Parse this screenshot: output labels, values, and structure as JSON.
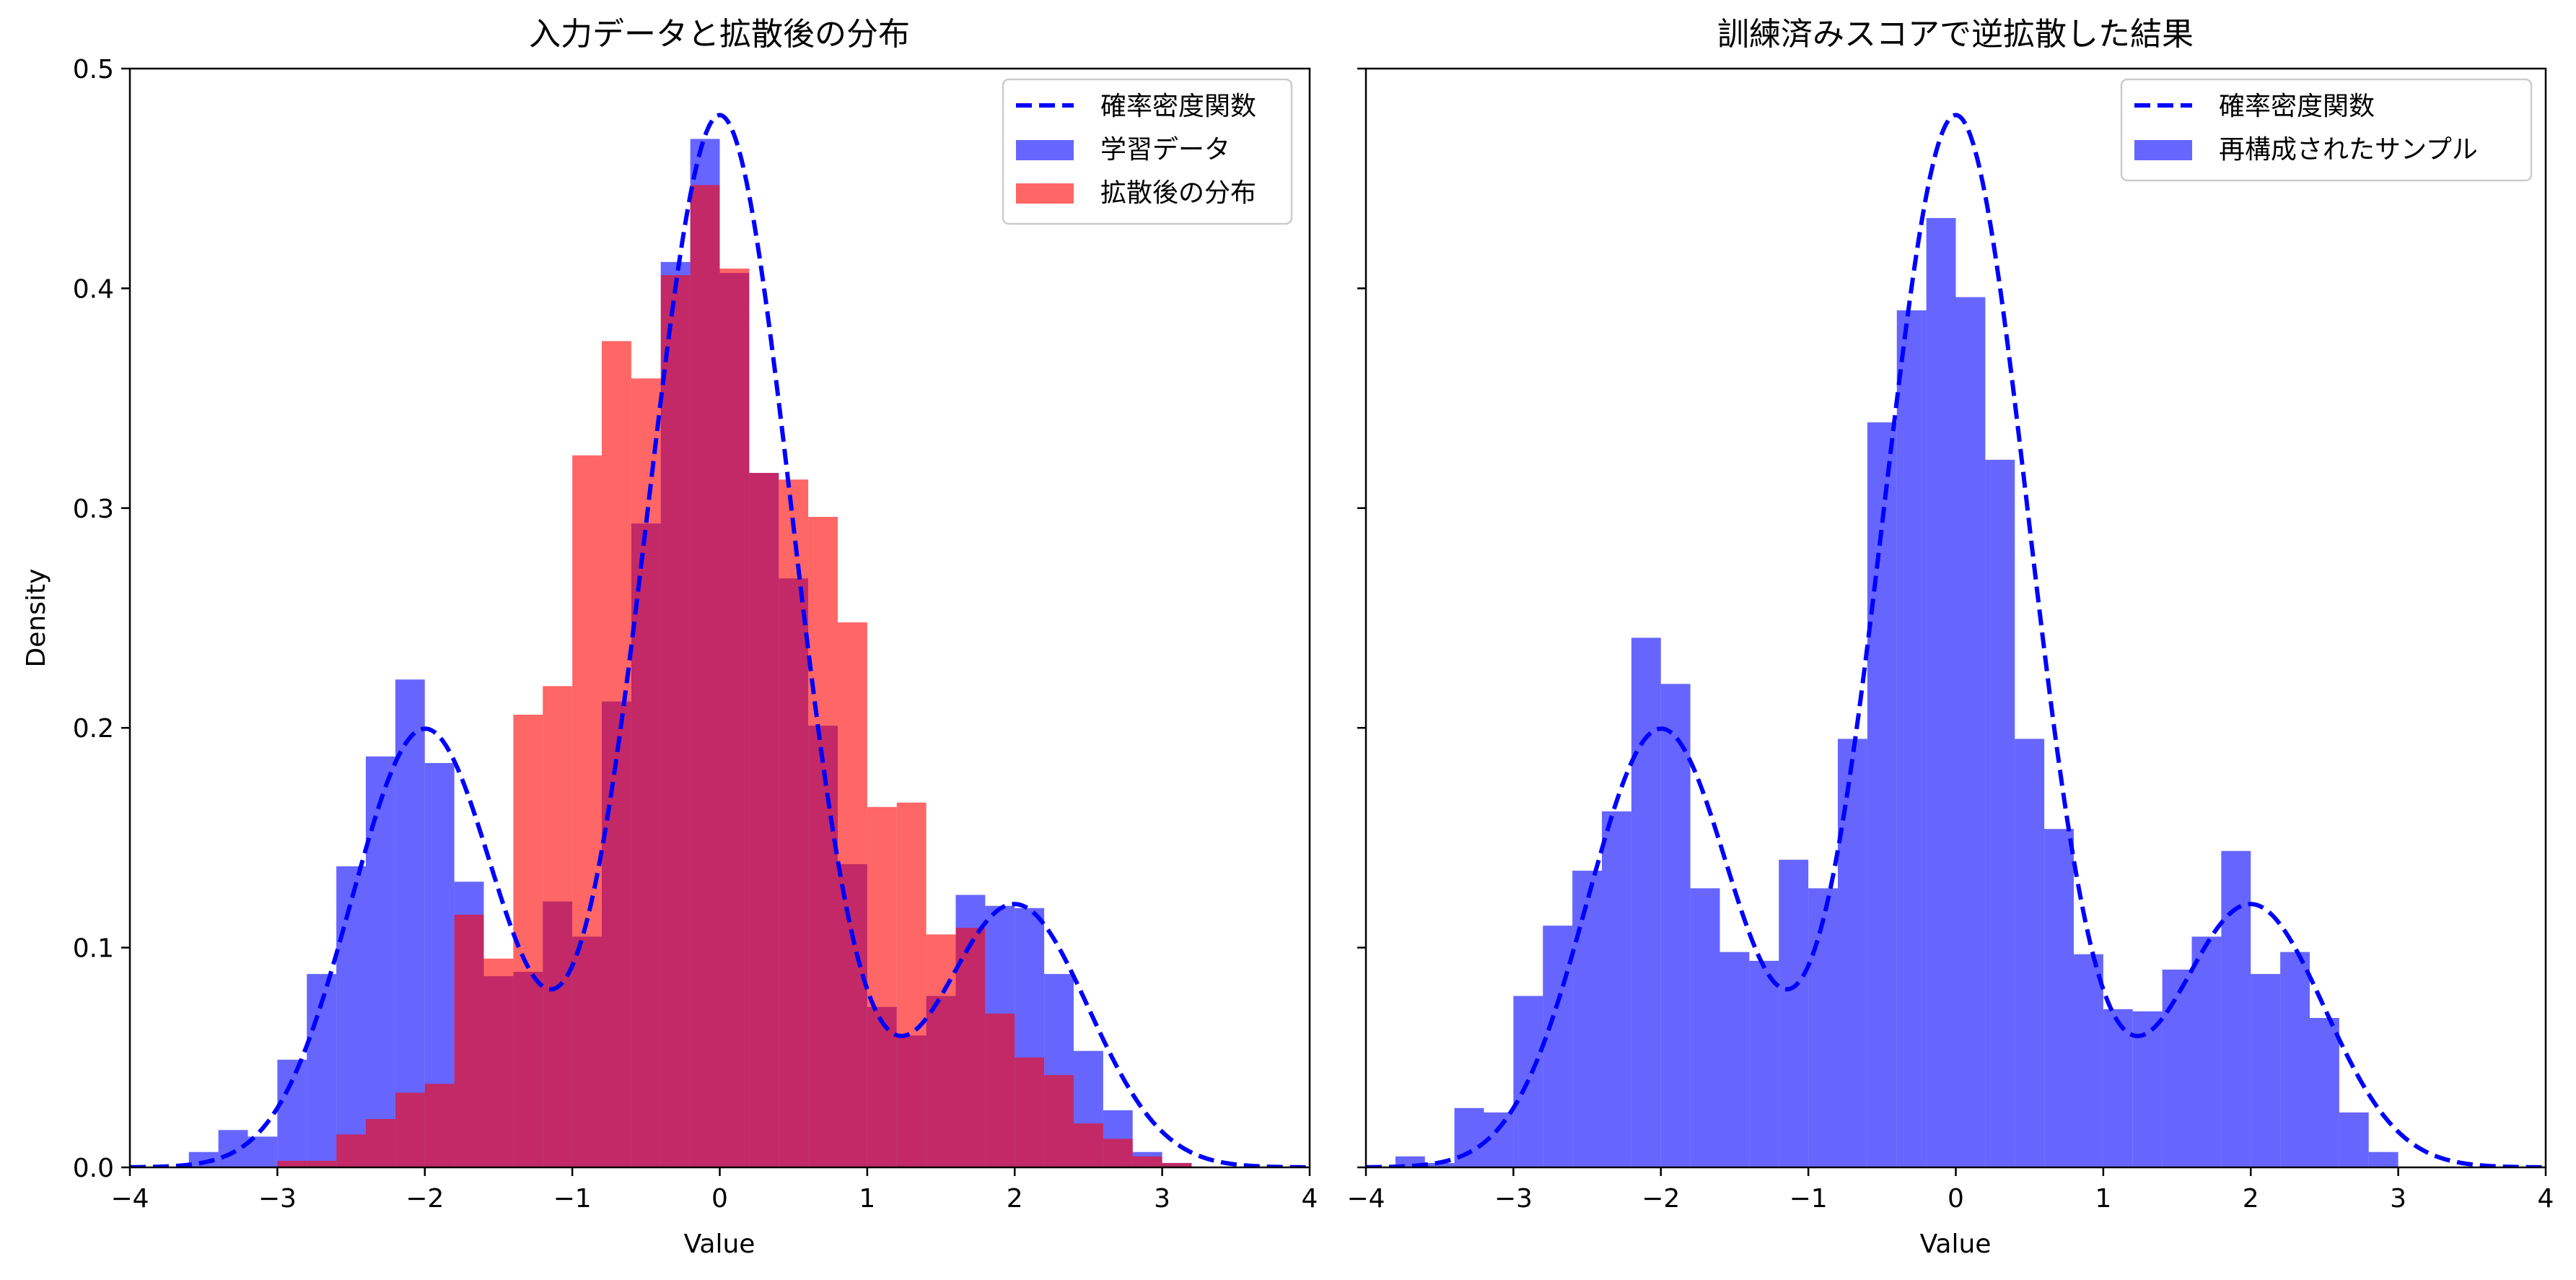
{
  "chart_data": [
    {
      "type": "histogram",
      "title": "入力データと拡散後の分布",
      "xlabel": "Value",
      "ylabel": "Density",
      "xlim": [
        -4,
        4
      ],
      "ylim": [
        0,
        0.5
      ],
      "xticks": [
        "−4",
        "−3",
        "−2",
        "−1",
        "0",
        "1",
        "2",
        "3",
        "4"
      ],
      "yticks": [
        "0.0",
        "0.1",
        "0.2",
        "0.3",
        "0.4",
        "0.5"
      ],
      "legend_position": "upper right",
      "pdf": {
        "name": "確率密度関数",
        "color": "#0000ff",
        "style": "dashed",
        "components": [
          {
            "weight": 0.25,
            "mean": -2,
            "sd": 0.5
          },
          {
            "weight": 0.6,
            "mean": 0,
            "sd": 0.5
          },
          {
            "weight": 0.15,
            "mean": 2,
            "sd": 0.5
          }
        ]
      },
      "series": [
        {
          "name": "学習データ",
          "color": "#0000ff",
          "opacity": 0.6,
          "bin_edges": [
            -3.6,
            -3.4,
            -3.2,
            -3.0,
            -2.8,
            -2.6,
            -2.4,
            -2.2,
            -2.0,
            -1.8,
            -1.6,
            -1.4,
            -1.2,
            -1.0,
            -0.8,
            -0.6,
            -0.4,
            -0.2,
            0.0,
            0.2,
            0.4,
            0.6,
            0.8,
            1.0,
            1.2,
            1.4,
            1.6,
            1.8,
            2.0,
            2.2,
            2.4,
            2.6,
            2.8,
            3.0,
            3.2
          ],
          "values": [
            0.007,
            0.017,
            0.014,
            0.049,
            0.088,
            0.137,
            0.187,
            0.222,
            0.184,
            0.13,
            0.087,
            0.089,
            0.121,
            0.105,
            0.212,
            0.293,
            0.412,
            0.468,
            0.407,
            0.316,
            0.268,
            0.201,
            0.138,
            0.073,
            0.06,
            0.078,
            0.124,
            0.119,
            0.118,
            0.088,
            0.053,
            0.026,
            0.007,
            0.002
          ]
        },
        {
          "name": "拡散後の分布",
          "color": "#ff0000",
          "opacity": 0.6,
          "bin_edges": [
            -3.0,
            -2.8,
            -2.6,
            -2.4,
            -2.2,
            -2.0,
            -1.8,
            -1.6,
            -1.4,
            -1.2,
            -1.0,
            -0.8,
            -0.6,
            -0.4,
            -0.2,
            0.0,
            0.2,
            0.4,
            0.6,
            0.8,
            1.0,
            1.2,
            1.4,
            1.6,
            1.8,
            2.0,
            2.2,
            2.4,
            2.6,
            2.8,
            3.0,
            3.2
          ],
          "values": [
            0.003,
            0.003,
            0.015,
            0.022,
            0.034,
            0.038,
            0.115,
            0.095,
            0.206,
            0.219,
            0.324,
            0.376,
            0.359,
            0.406,
            0.447,
            0.409,
            0.316,
            0.313,
            0.296,
            0.248,
            0.164,
            0.166,
            0.106,
            0.109,
            0.07,
            0.05,
            0.042,
            0.02,
            0.013,
            0.005,
            0.002
          ]
        }
      ]
    },
    {
      "type": "histogram",
      "title": "訓練済みスコアで逆拡散した結果",
      "xlabel": "Value",
      "xlim": [
        -4,
        4
      ],
      "ylim": [
        0,
        0.5
      ],
      "xticks": [
        "−4",
        "−3",
        "−2",
        "−1",
        "0",
        "1",
        "2",
        "3",
        "4"
      ],
      "legend_position": "upper right",
      "pdf": {
        "name": "確率密度関数",
        "color": "#0000ff",
        "style": "dashed",
        "components": [
          {
            "weight": 0.25,
            "mean": -2,
            "sd": 0.5
          },
          {
            "weight": 0.6,
            "mean": 0,
            "sd": 0.5
          },
          {
            "weight": 0.15,
            "mean": 2,
            "sd": 0.5
          }
        ]
      },
      "series": [
        {
          "name": "再構成されたサンプル",
          "color": "#0000ff",
          "opacity": 0.6,
          "bin_edges": [
            -3.8,
            -3.6,
            -3.4,
            -3.2,
            -3.0,
            -2.8,
            -2.6,
            -2.4,
            -2.2,
            -2.0,
            -1.8,
            -1.6,
            -1.4,
            -1.2,
            -1.0,
            -0.8,
            -0.6,
            -0.4,
            -0.2,
            0.0,
            0.2,
            0.4,
            0.6,
            0.8,
            1.0,
            1.2,
            1.4,
            1.6,
            1.8,
            2.0,
            2.2,
            2.4,
            2.6,
            2.8,
            3.0
          ],
          "values": [
            0.005,
            0.002,
            0.027,
            0.025,
            0.078,
            0.11,
            0.135,
            0.162,
            0.241,
            0.22,
            0.127,
            0.098,
            0.094,
            0.14,
            0.127,
            0.195,
            0.339,
            0.39,
            0.432,
            0.396,
            0.322,
            0.195,
            0.154,
            0.097,
            0.072,
            0.071,
            0.09,
            0.105,
            0.144,
            0.088,
            0.098,
            0.068,
            0.025,
            0.007
          ]
        }
      ]
    }
  ]
}
